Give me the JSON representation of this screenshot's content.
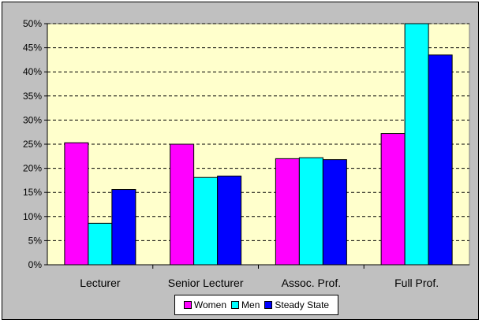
{
  "chart_data": {
    "type": "bar",
    "categories": [
      "Lecturer",
      "Senior Lecturer",
      "Assoc. Prof.",
      "Full Prof."
    ],
    "series": [
      {
        "name": "Women",
        "color": "#ff00ff",
        "values": [
          25.3,
          25.0,
          22.0,
          27.2
        ]
      },
      {
        "name": "Men",
        "color": "#00ffff",
        "values": [
          8.6,
          18.1,
          22.2,
          50.3
        ]
      },
      {
        "name": "Steady State",
        "color": "#0000ff",
        "values": [
          15.6,
          18.4,
          21.8,
          43.5
        ]
      }
    ],
    "ylim": [
      0,
      50
    ],
    "ytick_step": 5,
    "ytick_labels": [
      "0%",
      "5%",
      "10%",
      "15%",
      "20%",
      "25%",
      "30%",
      "35%",
      "40%",
      "45%",
      "50%"
    ],
    "grid": true,
    "legend_position": "bottom",
    "title": "",
    "xlabel": "",
    "ylabel": "",
    "colors": {
      "plot_background": "#ffffcc",
      "frame_background": "#c0c0c0"
    }
  }
}
